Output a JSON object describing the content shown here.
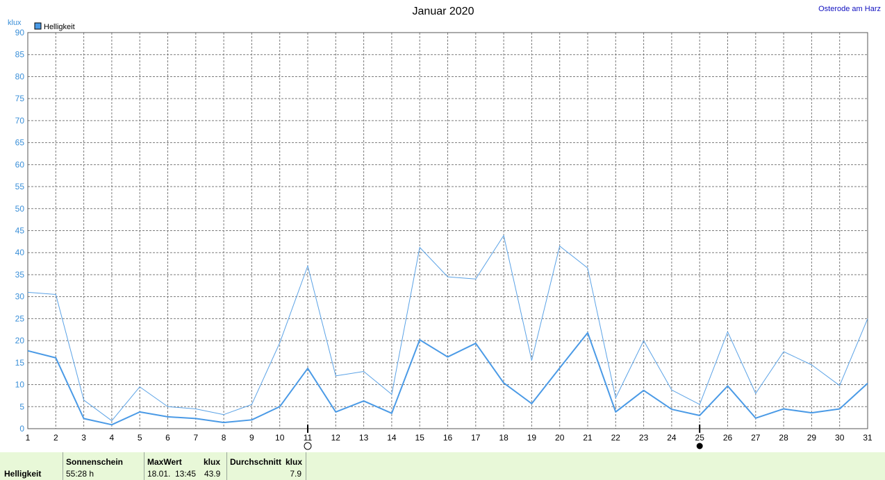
{
  "chart_data": {
    "type": "line",
    "title": "Januar 2020",
    "location": "Osterode am Harz",
    "ylabel": "klux",
    "xlabel": "",
    "x": [
      1,
      2,
      3,
      4,
      5,
      6,
      7,
      8,
      9,
      10,
      11,
      12,
      13,
      14,
      15,
      16,
      17,
      18,
      19,
      20,
      21,
      22,
      23,
      24,
      25,
      26,
      27,
      28,
      29,
      30,
      31
    ],
    "xlim": [
      1,
      31
    ],
    "ylim": [
      0,
      90
    ],
    "yticks": [
      0,
      5,
      10,
      15,
      20,
      25,
      30,
      35,
      40,
      45,
      50,
      55,
      60,
      65,
      70,
      75,
      80,
      85,
      90
    ],
    "grid": true,
    "legend": [
      {
        "label": "Helligkeit",
        "color": "#4a9ae6"
      }
    ],
    "legend_position": "top-left",
    "series": [
      {
        "name": "Helligkeit",
        "role": "max",
        "color": "#5aa2e6",
        "values": [
          31.0,
          30.5,
          6.5,
          1.8,
          9.5,
          5.0,
          4.5,
          3.2,
          5.5,
          19.5,
          37.0,
          12.0,
          13.0,
          7.8,
          41.2,
          34.5,
          34.0,
          43.9,
          15.5,
          41.5,
          36.5,
          7.0,
          20.0,
          8.8,
          5.5,
          22.0,
          8.0,
          17.5,
          14.5,
          9.8,
          25.0
        ]
      },
      {
        "name": "Helligkeit",
        "role": "mean",
        "color": "#4a9ae6",
        "values": [
          17.7,
          16.1,
          2.3,
          0.9,
          3.8,
          2.7,
          2.3,
          1.4,
          2.0,
          5.0,
          13.7,
          3.8,
          6.3,
          3.5,
          20.2,
          16.3,
          19.4,
          10.4,
          5.7,
          13.8,
          21.8,
          3.8,
          8.7,
          4.4,
          3.0,
          9.7,
          2.4,
          4.5,
          3.6,
          4.5,
          10.3
        ]
      }
    ],
    "markers": [
      {
        "day": 11,
        "type": "full-moon"
      },
      {
        "day": 25,
        "type": "new-moon"
      }
    ]
  },
  "colors": {
    "axis_text": "#3a8fd8",
    "x_ticks": "#000000",
    "grid": "#7a7a7a",
    "footer_bg": "#e8f8d8"
  },
  "footer": {
    "row_label": "Helligkeit",
    "sun_header": "Sonnenschein",
    "sun_value": "55:28 h",
    "max_header": "MaxWert",
    "max_unit": "klux",
    "max_date": "18.01.",
    "max_time": "13:45",
    "max_value": "43.9",
    "avg_header": "Durchschnitt",
    "avg_unit": "klux",
    "avg_value": "7.9"
  }
}
